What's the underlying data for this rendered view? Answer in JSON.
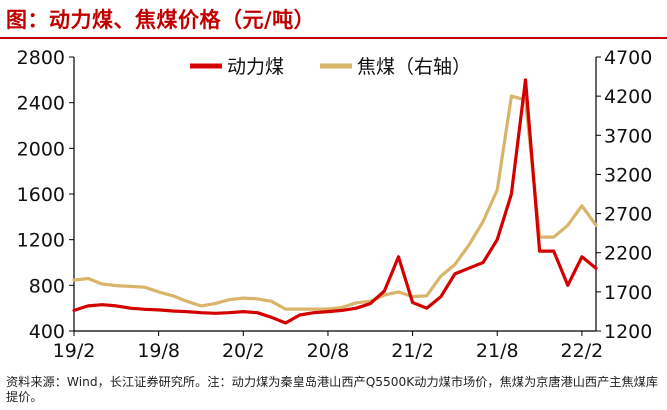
{
  "title": "图：动力煤、焦煤价格（元/吨）",
  "source": "资料来源：Wind，长江证券研究所。注：动力煤为秦皇岛港山西产Q5500K动力煤市场价，焦煤为京唐港山西产主焦煤库提价。",
  "colors": {
    "title": "#c00000",
    "thermal": "#d40000",
    "coking": "#d9b56b"
  },
  "chart_data": {
    "type": "line",
    "x_ticks": [
      "19/2",
      "19/8",
      "20/2",
      "20/8",
      "21/2",
      "21/8",
      "22/2"
    ],
    "y_left_ticks": [
      400,
      800,
      1200,
      1600,
      2000,
      2400,
      2800
    ],
    "y_left_lim": [
      400,
      2800
    ],
    "y_right_ticks": [
      1200,
      1700,
      2200,
      2700,
      3200,
      3700,
      4200,
      4700
    ],
    "y_right_lim": [
      1200,
      4700
    ],
    "x_range": [
      "2019-02",
      "2022-03"
    ],
    "legend": "top-center",
    "series": [
      {
        "name": "动力煤",
        "axis": "left",
        "color": "#d40000",
        "points": [
          [
            "2019-02",
            580
          ],
          [
            "2019-03",
            620
          ],
          [
            "2019-04",
            630
          ],
          [
            "2019-05",
            620
          ],
          [
            "2019-06",
            600
          ],
          [
            "2019-07",
            590
          ],
          [
            "2019-08",
            585
          ],
          [
            "2019-09",
            575
          ],
          [
            "2019-10",
            570
          ],
          [
            "2019-11",
            560
          ],
          [
            "2019-12",
            555
          ],
          [
            "2020-01",
            560
          ],
          [
            "2020-02",
            570
          ],
          [
            "2020-03",
            560
          ],
          [
            "2020-04",
            520
          ],
          [
            "2020-05",
            470
          ],
          [
            "2020-06",
            540
          ],
          [
            "2020-07",
            560
          ],
          [
            "2020-08",
            570
          ],
          [
            "2020-09",
            580
          ],
          [
            "2020-10",
            600
          ],
          [
            "2020-11",
            640
          ],
          [
            "2020-12",
            750
          ],
          [
            "2021-01",
            1050
          ],
          [
            "2021-02",
            650
          ],
          [
            "2021-03",
            600
          ],
          [
            "2021-04",
            700
          ],
          [
            "2021-05",
            900
          ],
          [
            "2021-06",
            950
          ],
          [
            "2021-07",
            1000
          ],
          [
            "2021-08",
            1200
          ],
          [
            "2021-09",
            1600
          ],
          [
            "2021-10",
            2600
          ],
          [
            "2021-11",
            1100
          ],
          [
            "2021-12",
            1100
          ],
          [
            "2022-01",
            800
          ],
          [
            "2022-02",
            1050
          ],
          [
            "2022-03",
            950
          ]
        ]
      },
      {
        "name": "焦煤（右轴）",
        "axis": "right",
        "color": "#d9b56b",
        "points": [
          [
            "2019-02",
            1850
          ],
          [
            "2019-03",
            1870
          ],
          [
            "2019-04",
            1800
          ],
          [
            "2019-05",
            1780
          ],
          [
            "2019-06",
            1770
          ],
          [
            "2019-07",
            1760
          ],
          [
            "2019-08",
            1700
          ],
          [
            "2019-09",
            1650
          ],
          [
            "2019-10",
            1580
          ],
          [
            "2019-11",
            1520
          ],
          [
            "2019-12",
            1550
          ],
          [
            "2020-01",
            1600
          ],
          [
            "2020-02",
            1620
          ],
          [
            "2020-03",
            1610
          ],
          [
            "2020-04",
            1580
          ],
          [
            "2020-05",
            1480
          ],
          [
            "2020-06",
            1480
          ],
          [
            "2020-07",
            1480
          ],
          [
            "2020-08",
            1480
          ],
          [
            "2020-09",
            1500
          ],
          [
            "2020-10",
            1560
          ],
          [
            "2020-11",
            1580
          ],
          [
            "2020-12",
            1660
          ],
          [
            "2021-01",
            1700
          ],
          [
            "2021-02",
            1640
          ],
          [
            "2021-03",
            1650
          ],
          [
            "2021-04",
            1900
          ],
          [
            "2021-05",
            2050
          ],
          [
            "2021-06",
            2300
          ],
          [
            "2021-07",
            2600
          ],
          [
            "2021-08",
            3000
          ],
          [
            "2021-09",
            4200
          ],
          [
            "2021-10",
            4150
          ],
          [
            "2021-11",
            2400
          ],
          [
            "2021-12",
            2400
          ],
          [
            "2022-01",
            2550
          ],
          [
            "2022-02",
            2800
          ],
          [
            "2022-03",
            2550
          ]
        ]
      }
    ]
  }
}
